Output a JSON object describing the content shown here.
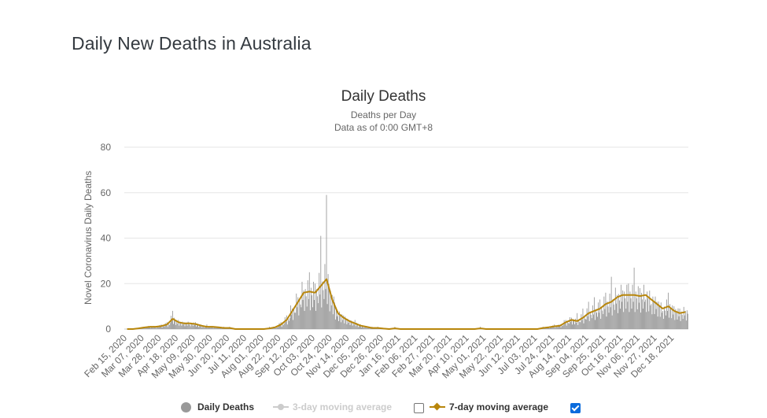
{
  "page": {
    "title": "Daily New Deaths in Australia"
  },
  "chart_data": {
    "type": "bar",
    "title": "Daily Deaths",
    "subtitle": "Deaths per Day",
    "subtitle2": "Data as of 0:00 GMT+8",
    "xlabel": "",
    "ylabel": "Novel Coronavirus Daily Deaths",
    "ylim": [
      0,
      80
    ],
    "yticks": [
      0,
      20,
      40,
      60,
      80
    ],
    "grid": true,
    "legend_position": "bottom",
    "x_start": "Feb 15, 2020",
    "x_interval_days": 7,
    "x_tick_labels": [
      "Feb 15, 2020",
      "Mar 07, 2020",
      "Mar 28, 2020",
      "Apr 18, 2020",
      "May 09, 2020",
      "May 30, 2020",
      "Jun 20, 2020",
      "Jul 11, 2020",
      "Aug 01, 2020",
      "Aug 22, 2020",
      "Sep 12, 2020",
      "Oct 03, 2020",
      "Oct 24, 2020",
      "Nov 14, 2020",
      "Dec 05, 2020",
      "Dec 26, 2020",
      "Jan 16, 2021",
      "Feb 06, 2021",
      "Feb 27, 2021",
      "Mar 20, 2021",
      "Apr 10, 2021",
      "May 01, 2021",
      "May 22, 2021",
      "Jun 12, 2021",
      "Jul 03, 2021",
      "Jul 24, 2021",
      "Aug 14, 2021",
      "Sep 04, 2021",
      "Sep 25, 2021",
      "Oct 16, 2021",
      "Nov 06, 2021",
      "Nov 27, 2021",
      "Dec 18, 2021"
    ],
    "series": [
      {
        "name": "Daily Deaths",
        "type": "bar",
        "color": "#999999",
        "values": [
          0,
          0,
          0,
          1,
          1,
          1,
          2,
          3,
          8,
          4,
          3,
          2,
          3,
          2,
          2,
          1,
          1,
          1,
          1,
          0,
          0,
          0,
          0,
          0,
          0,
          1,
          1,
          3,
          6,
          9,
          14,
          17,
          25,
          20,
          41,
          59,
          15,
          8,
          6,
          4,
          4,
          2,
          1,
          1,
          1,
          0,
          0,
          1,
          0,
          0,
          0,
          0,
          0,
          0,
          0,
          0,
          0,
          0,
          0,
          0,
          0,
          0,
          1,
          0,
          0,
          0,
          0,
          0,
          0,
          0,
          0,
          0,
          0,
          1,
          1,
          2,
          2,
          4,
          5,
          7,
          9,
          12,
          14,
          13,
          16,
          23,
          15,
          17,
          20,
          27,
          18,
          13,
          11,
          12,
          8,
          16,
          10,
          9,
          8
        ]
      },
      {
        "name": "3-day moving average",
        "type": "line",
        "color": "#cccccc",
        "visible": false,
        "values": []
      },
      {
        "name": "7-day moving average",
        "type": "line",
        "color": "#b8860b",
        "visible": true,
        "values": [
          0,
          0,
          0.3,
          0.7,
          1,
          1,
          1.3,
          2,
          4.5,
          3,
          2.5,
          2.5,
          2.2,
          1.5,
          1,
          1,
          0.8,
          0.5,
          0.5,
          0,
          0,
          0,
          0,
          0,
          0,
          0.3,
          0.8,
          2,
          4,
          8,
          12,
          16,
          16.5,
          16,
          19,
          22,
          13,
          7,
          5,
          3.5,
          2.5,
          1.5,
          1,
          0.5,
          0.5,
          0.2,
          0,
          0.3,
          0,
          0,
          0,
          0,
          0,
          0,
          0,
          0,
          0,
          0,
          0,
          0,
          0,
          0,
          0.3,
          0,
          0,
          0,
          0,
          0,
          0,
          0,
          0,
          0,
          0,
          0.5,
          0.8,
          1.2,
          1.5,
          3,
          4,
          3.5,
          5,
          7,
          8,
          9,
          11,
          12,
          14,
          15,
          15,
          15,
          14.5,
          15,
          13,
          11,
          9,
          10,
          8,
          7,
          7.5
        ]
      }
    ]
  },
  "legend": {
    "items": [
      {
        "label": "Daily Deaths",
        "color": "#999999",
        "icon": "circle-icon"
      },
      {
        "label": "3-day moving average",
        "color": "#cccccc",
        "icon": "line-circle-icon",
        "checked": false
      },
      {
        "label": "7-day moving average",
        "color": "#b8860b",
        "icon": "line-diamond-icon",
        "checked": true
      }
    ]
  }
}
